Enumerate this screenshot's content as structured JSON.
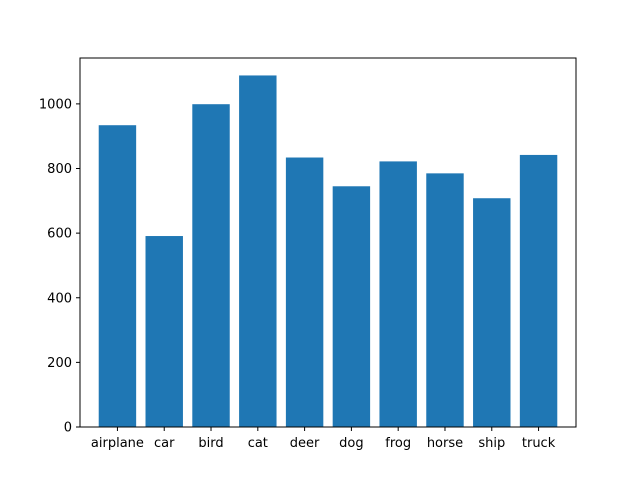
{
  "chart_data": {
    "type": "bar",
    "categories": [
      "airplane",
      "car",
      "bird",
      "cat",
      "deer",
      "dog",
      "frog",
      "horse",
      "ship",
      "truck"
    ],
    "values": [
      934,
      591,
      999,
      1088,
      834,
      745,
      822,
      785,
      708,
      842
    ],
    "title": "",
    "xlabel": "",
    "ylabel": "",
    "ylim": [
      0,
      1142
    ],
    "yticks": [
      0,
      200,
      400,
      600,
      800,
      1000
    ],
    "bar_color": "#1f77b4",
    "grid": false,
    "legend": "none"
  }
}
